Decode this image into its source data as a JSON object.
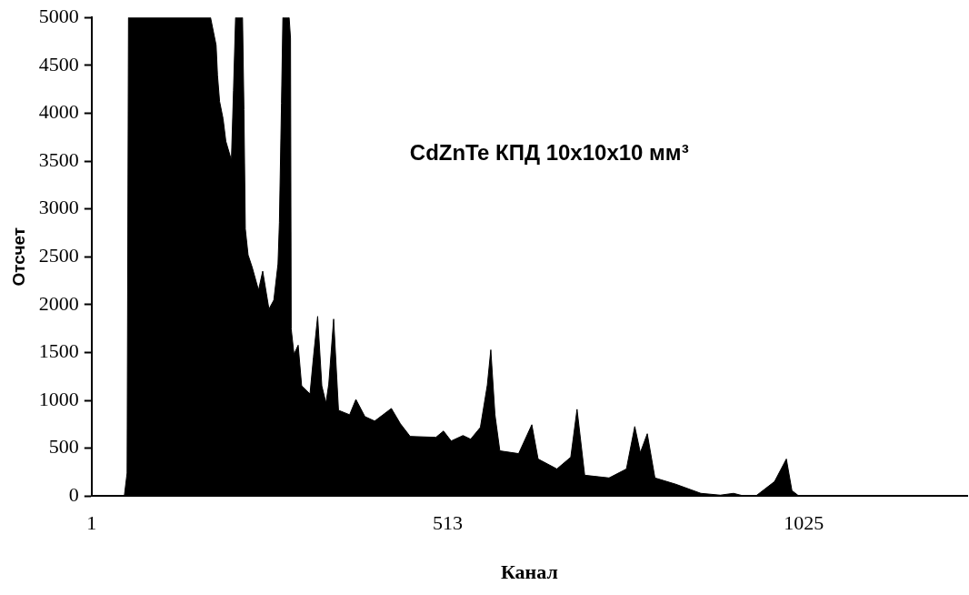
{
  "chart_data": {
    "type": "area",
    "xlabel": "Канал",
    "ylabel": "Отсчет",
    "annotations": [
      "CdZnTe КПД 10x10x10 мм³"
    ],
    "xlim": [
      1,
      1260
    ],
    "xticks": [
      1,
      513,
      1025
    ],
    "ylim": [
      0,
      5000
    ],
    "yticks": [
      0,
      500,
      1000,
      1500,
      2000,
      2500,
      3000,
      3500,
      4000,
      4500,
      5000
    ],
    "grid": false,
    "legend": false,
    "series": [
      {
        "color": "#000000",
        "x": [
          48,
          52,
          54,
          172,
          180,
          182,
          185,
          190,
          194,
          202,
          205,
          208,
          218,
          220,
          222,
          226,
          232,
          241,
          247,
          256,
          263,
          269,
          271,
          274,
          276,
          285,
          287,
          288,
          292,
          298,
          303,
          315,
          320,
          326,
          332,
          338,
          342,
          349,
          356,
          372,
          381,
          394,
          408,
          432,
          445,
          459,
          496,
          507,
          518,
          535,
          546,
          560,
          570,
          575,
          581,
          588,
          615,
          634,
          643,
          670,
          690,
          699,
          710,
          745,
          770,
          782,
          790,
          800,
          811,
          841,
          877,
          905,
          924,
          939,
          956,
          983,
          1000,
          1008,
          1018,
          1260
        ],
        "values": [
          0,
          240,
          5000,
          5000,
          4711,
          4397,
          4123,
          3943,
          3707,
          3509,
          4236,
          5000,
          5000,
          4038,
          2791,
          2519,
          2387,
          2151,
          2349,
          1953,
          2047,
          2425,
          2858,
          4104,
          5000,
          5000,
          4783,
          1745,
          1481,
          1576,
          1151,
          1066,
          1453,
          1877,
          1151,
          972,
          1170,
          1849,
          896,
          849,
          1009,
          830,
          783,
          915,
          755,
          623,
          613,
          679,
          575,
          632,
          594,
          717,
          1160,
          1528,
          849,
          472,
          443,
          745,
          387,
          283,
          406,
          906,
          217,
          189,
          283,
          726,
          453,
          651,
          189,
          123,
          28,
          9,
          28,
          0,
          0,
          151,
          387,
          57,
          0,
          0
        ]
      }
    ]
  }
}
